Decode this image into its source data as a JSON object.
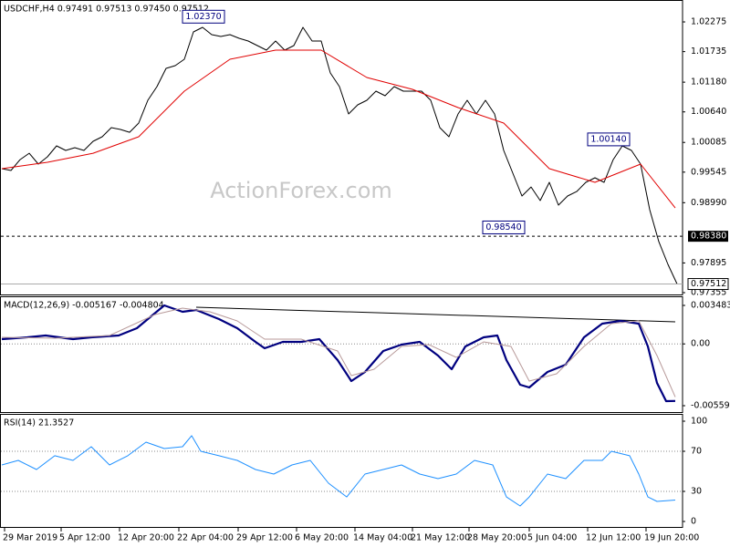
{
  "chart_data": [
    {
      "type": "line",
      "title": "USDCHF,H4  0.97491 0.97513 0.97450 0.97512",
      "watermark": "ActionForex.com",
      "xlim": [
        -0.2,
        74.6
      ],
      "ylim": [
        0.97322,
        1.0264
      ],
      "yticks": [
        1.02275,
        1.01735,
        {
          "value": 1.0118,
          "label": "1.01180"
        },
        {
          "value": 1.0064,
          "label": "1.00640"
        },
        1.00085,
        0.99545,
        {
          "value": 0.9899,
          "label": "0.98990"
        },
        0.97895,
        0.97355
      ],
      "series": [
        {
          "name": "USDCHF",
          "color": "#000000",
          "x": [
            0,
            1,
            2,
            3,
            4,
            5,
            6,
            7,
            8,
            9,
            10,
            11,
            12,
            13,
            14,
            15,
            16,
            17,
            18,
            19,
            20,
            21,
            22,
            23,
            24,
            25,
            26,
            27,
            28,
            29,
            30,
            31,
            32,
            33,
            34,
            35,
            36,
            37,
            38,
            39,
            40,
            41,
            42,
            43,
            44,
            45,
            46,
            47,
            48,
            49,
            50,
            51,
            52,
            53,
            54,
            55,
            56,
            57,
            58,
            59,
            60,
            61,
            62,
            63,
            64,
            65,
            66,
            67,
            68,
            69,
            70,
            71,
            72,
            73,
            74
          ],
          "values": [
            0.99608,
            0.99575,
            0.99773,
            0.99889,
            0.99691,
            0.99823,
            1.00022,
            0.99939,
            0.99989,
            0.99939,
            1.00105,
            1.00188,
            1.00353,
            1.0032,
            1.0027,
            1.00436,
            1.0085,
            1.01099,
            1.0143,
            1.0148,
            1.01596,
            1.02093,
            1.02176,
            1.02043,
            1.0201,
            1.02043,
            1.01977,
            1.01927,
            1.01845,
            1.01762,
            1.01927,
            1.01762,
            1.01845,
            1.02176,
            1.01927,
            1.01927,
            1.01348,
            1.01099,
            1.00602,
            1.00768,
            1.0085,
            1.01016,
            1.00933,
            1.01099,
            1.01016,
            1.01016,
            1.01016,
            1.0085,
            1.00353,
            1.00188,
            1.00602,
            1.0085,
            1.00602,
            1.0085,
            1.00602,
            0.99939,
            0.99525,
            0.99111,
            0.99276,
            0.99028,
            0.99359,
            0.98945,
            0.99111,
            0.99193,
            0.99359,
            0.99442,
            0.99359,
            0.99773,
            1.00022,
            0.99939,
            0.99691,
            0.98862,
            0.98282,
            0.97868,
            0.97512
          ]
        },
        {
          "name": "MA",
          "color": "#e00000",
          "x": [
            0,
            5,
            10,
            15,
            20,
            25,
            30,
            35,
            40,
            45,
            50,
            55,
            60,
            65,
            70,
            73.8
          ],
          "values": [
            0.99608,
            0.99724,
            0.99889,
            1.00188,
            1.01016,
            1.01596,
            1.01762,
            1.01762,
            1.01265,
            1.01049,
            1.00718,
            1.00436,
            0.99608,
            0.99359,
            0.99691,
            0.98895
          ]
        }
      ],
      "annotations": [
        {
          "label": "1.02370",
          "value": 1.0237,
          "x": 24.4
        },
        {
          "label": "1.00140",
          "value": 1.0014,
          "x": 68.8
        },
        {
          "label": "0.98540",
          "value": 0.9854,
          "x": 57.3
        }
      ],
      "hlines": [
        {
          "value": 0.9838,
          "label": "0.98380"
        }
      ],
      "last_price": {
        "value": 0.97512,
        "label": "0.97512"
      }
    },
    {
      "type": "line",
      "title": "MACD(12,26,9) -0.005167 -0.004804",
      "xlim": [
        -0.2,
        74.6
      ],
      "ylim": [
        -0.00617,
        0.004143
      ],
      "yticks": [
        0.003483,
        {
          "value": 0,
          "label": "0.00"
        },
        -0.005592
      ],
      "levels": [
        0
      ],
      "series": [
        {
          "name": "MACD",
          "color": "#00007f",
          "width": 2.2,
          "x": [
            0,
            2.8,
            4.8,
            7.8,
            9.8,
            12.8,
            14.8,
            17.8,
            19.8,
            21.3,
            23.8,
            25.8,
            27.8,
            28.8,
            30.8,
            32.8,
            34.8,
            36.8,
            38.3,
            39.8,
            41.8,
            43.8,
            45.8,
            47.8,
            49.3,
            50.8,
            52.8,
            54.3,
            55.3,
            56.8,
            57.8,
            59.8,
            61.8,
            63.8,
            65.8,
            67.8,
            69.8,
            70.8,
            71.8,
            72.8,
            73.8
          ],
          "values": [
            0.00043,
            0.000595,
            0.00076,
            0.00043,
            0.000595,
            0.00076,
            0.00142,
            0.003483,
            0.002905,
            0.00307,
            0.002243,
            0.00142,
            0.000183,
            -0.000395,
            0.000183,
            0.000183,
            0.00043,
            -0.001467,
            -0.003365,
            -0.00254,
            -0.000642,
            -6.5e-05,
            0.000183,
            -0.001055,
            -0.002292,
            -0.00023,
            0.000595,
            0.00076,
            -0.001467,
            -0.003695,
            -0.003942,
            -0.00254,
            -0.00188,
            0.000595,
            0.001833,
            0.00208,
            0.001833,
            -0.00023,
            -0.00353,
            -0.00518,
            -0.005167
          ]
        },
        {
          "name": "Signal",
          "color": "#b89a9a",
          "width": 1,
          "x": [
            0,
            5.8,
            11.8,
            16.8,
            19.8,
            22.8,
            25.8,
            28.8,
            32.8,
            36.8,
            38.3,
            40.8,
            43.8,
            46.8,
            49.8,
            52.8,
            55.8,
            57.8,
            60.8,
            63.8,
            66.8,
            69.8,
            71.8,
            73.8
          ],
          "values": [
            0.000595,
            0.000513,
            0.00076,
            0.002658,
            0.003235,
            0.002905,
            0.00208,
            0.00043,
            0.00043,
            -0.000642,
            -0.00287,
            -0.002292,
            -0.00023,
            -6.5e-05,
            -0.00122,
            0.000183,
            -0.00023,
            -0.003365,
            -0.002705,
            -0.00023,
            0.001833,
            0.00208,
            -0.001055,
            -0.004804
          ]
        }
      ]
    },
    {
      "type": "line",
      "title": "RSI(14) 21.3527",
      "xlim": [
        -0.2,
        74.6
      ],
      "ylim": [
        -5.45,
        105.45
      ],
      "yticks": [
        100,
        70,
        30,
        0
      ],
      "levels": [
        70,
        30
      ],
      "xticks": [
        {
          "value": 0.3,
          "label": "29 Mar 2019"
        },
        {
          "value": 6.5,
          "label": "5 Apr 12:00"
        },
        {
          "value": 12.9,
          "label": "12 Apr 20:00"
        },
        {
          "value": 19.4,
          "label": "22 Apr 04:00"
        },
        {
          "value": 25.9,
          "label": "29 Apr 12:00"
        },
        {
          "value": 32.3,
          "label": "6 May 20:00"
        },
        {
          "value": 38.7,
          "label": "14 May 04:00"
        },
        {
          "value": 45.0,
          "label": "21 May 12:00"
        },
        {
          "value": 51.2,
          "label": "28 May 20:00"
        },
        {
          "value": 57.8,
          "label": "5 Jun 04:00"
        },
        {
          "value": 64.2,
          "label": "12 Jun 12:00"
        },
        {
          "value": 70.6,
          "label": "19 Jun 20:00"
        }
      ],
      "series": [
        {
          "name": "RSI",
          "color": "#1e90ff",
          "width": 1,
          "x": [
            0,
            1.8,
            3.8,
            5.8,
            7.8,
            9.8,
            11.8,
            13.8,
            15.8,
            17.8,
            19.8,
            20.8,
            21.8,
            23.8,
            25.8,
            27.8,
            29.8,
            31.8,
            33.8,
            35.8,
            37.8,
            39.8,
            41.8,
            43.8,
            45.8,
            47.8,
            49.8,
            51.8,
            53.8,
            55.3,
            56.8,
            57.8,
            59.8,
            61.8,
            63.8,
            65.8,
            66.8,
            68.8,
            69.8,
            70.8,
            71.8,
            73.8
          ],
          "values": [
            56.4,
            60.9,
            51.8,
            65.5,
            60.9,
            74.5,
            56.4,
            65.5,
            79.1,
            72.7,
            74.5,
            85.5,
            70.0,
            65.5,
            60.9,
            51.8,
            47.3,
            56.4,
            60.9,
            38.2,
            24.5,
            47.3,
            51.8,
            56.4,
            47.3,
            42.7,
            47.3,
            60.9,
            56.4,
            24.5,
            15.5,
            24.5,
            47.3,
            42.7,
            60.9,
            60.9,
            70.0,
            65.5,
            47.3,
            24.5,
            20.0,
            21.3527
          ]
        }
      ]
    }
  ]
}
